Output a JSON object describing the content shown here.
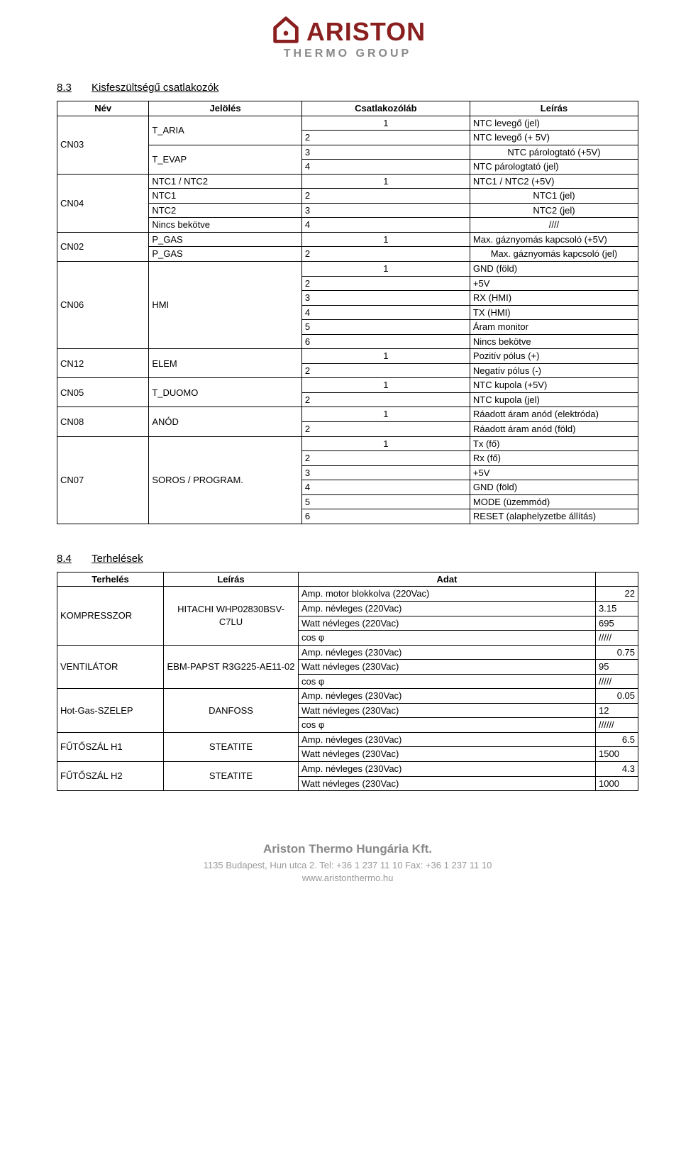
{
  "logo": {
    "brand": "ARISTON",
    "sub": "THERMO GROUP",
    "brand_color": "#8a1f1f",
    "sub_color": "#888888"
  },
  "section1": {
    "num": "8.3",
    "title": "Kisfeszültségű csatlakozók",
    "headers": [
      "Név",
      "Jelölés",
      "Csatlakozóláb",
      "Leírás"
    ],
    "rows": [
      {
        "nev": "CN03",
        "nev_span": 4,
        "jel": "T_ARIA",
        "jel_span": 2,
        "pin": "1",
        "leiras": "NTC levegő (jel)"
      },
      {
        "pin": "2",
        "leiras": "NTC levegő (+ 5V)"
      },
      {
        "jel": "T_EVAP",
        "jel_span": 2,
        "pin": "3",
        "leiras": "NTC párologtató (+5V)"
      },
      {
        "pin": "4",
        "leiras": "NTC párologtató (jel)"
      },
      {
        "nev": "CN04",
        "nev_span": 4,
        "jel": "NTC1 / NTC2",
        "pin": "1",
        "leiras": "NTC1 / NTC2 (+5V)"
      },
      {
        "jel": "NTC1",
        "pin": "2",
        "leiras": "NTC1 (jel)"
      },
      {
        "jel": "NTC2",
        "pin": "3",
        "leiras": "NTC2 (jel)"
      },
      {
        "jel": "Nincs bekötve",
        "pin": "4",
        "leiras": "////"
      },
      {
        "nev": "CN02",
        "nev_span": 2,
        "jel": "P_GAS",
        "pin": "1",
        "leiras": "Max. gáznyomás kapcsoló (+5V)"
      },
      {
        "jel": "P_GAS",
        "pin": "2",
        "leiras": "Max. gáznyomás kapcsoló (jel)"
      },
      {
        "nev": "CN06",
        "nev_span": 6,
        "jel": "HMI",
        "jel_span": 6,
        "pin": "1",
        "leiras": "GND (föld)"
      },
      {
        "pin": "2",
        "leiras": "+5V"
      },
      {
        "pin": "3",
        "leiras": "RX (HMI)"
      },
      {
        "pin": "4",
        "leiras": "TX (HMI)"
      },
      {
        "pin": "5",
        "leiras": "Áram monitor"
      },
      {
        "pin": "6",
        "leiras": "Nincs bekötve"
      },
      {
        "nev": "CN12",
        "nev_span": 2,
        "jel": "ELEM",
        "jel_span": 2,
        "pin": "1",
        "leiras": "Pozitív pólus (+)"
      },
      {
        "pin": "2",
        "leiras": "Negatív pólus (-)"
      },
      {
        "nev": "CN05",
        "nev_span": 2,
        "jel": "T_DUOMO",
        "jel_span": 2,
        "pin": "1",
        "leiras": "NTC kupola (+5V)"
      },
      {
        "pin": "2",
        "leiras": "NTC kupola (jel)"
      },
      {
        "nev": "CN08",
        "nev_span": 2,
        "jel": "ANÓD",
        "jel_span": 2,
        "pin": "1",
        "leiras": "Ráadott áram anód (elektróda)"
      },
      {
        "pin": "2",
        "leiras": "Ráadott áram anód (föld)"
      },
      {
        "nev": "CN07",
        "nev_span": 6,
        "jel": "SOROS / PROGRAM.",
        "jel_span": 6,
        "pin": "1",
        "leiras": "Tx (fő)"
      },
      {
        "pin": "2",
        "leiras": "Rx (fő)"
      },
      {
        "pin": "3",
        "leiras": "+5V"
      },
      {
        "pin": "4",
        "leiras": "GND (föld)"
      },
      {
        "pin": "5",
        "leiras": "MODE (üzemmód)"
      },
      {
        "pin": "6",
        "leiras": "RESET (alaphelyzetbe állítás)"
      }
    ]
  },
  "section2": {
    "num": "8.4",
    "title": "Terhelések",
    "headers": [
      "Terhelés",
      "Leírás",
      "Adat",
      ""
    ],
    "rows": [
      {
        "t": "KOMPRESSZOR",
        "t_span": 4,
        "l": "HITACHI WHP02830BSV-C7LU",
        "l_span": 4,
        "a": "Amp. motor blokkolva (220Vac)",
        "v": "22"
      },
      {
        "a": "Amp. névleges (220Vac)",
        "v": "3.15"
      },
      {
        "a": "Watt névleges (220Vac)",
        "v": "695"
      },
      {
        "a": "cos φ",
        "v": "/////"
      },
      {
        "t": "VENTILÁTOR",
        "t_span": 3,
        "l": "EBM-PAPST R3G225-AE11-02",
        "l_span": 3,
        "a": "Amp. névleges (230Vac)",
        "v": "0.75"
      },
      {
        "a": "Watt névleges (230Vac)",
        "v": "95"
      },
      {
        "a": "cos φ",
        "v": "/////"
      },
      {
        "t": "Hot-Gas-SZELEP",
        "t_span": 3,
        "l": "DANFOSS",
        "l_span": 3,
        "a": "Amp. névleges (230Vac)",
        "v": "0.05"
      },
      {
        "a": "Watt névleges (230Vac)",
        "v": "12"
      },
      {
        "a": "cos φ",
        "v": "//////"
      },
      {
        "t": "FŰTŐSZÁL   H1",
        "t_span": 2,
        "l": "STEATITE",
        "l_span": 2,
        "a": "Amp. névleges (230Vac)",
        "v": "6.5"
      },
      {
        "a": "Watt névleges (230Vac)",
        "v": "1500"
      },
      {
        "t": "FŰTŐSZÁL H2",
        "t_span": 2,
        "l": "STEATITE",
        "l_span": 2,
        "a": "Amp. névleges (230Vac)",
        "v": "4.3"
      },
      {
        "a": "Watt névleges (230Vac)",
        "v": "1000"
      }
    ]
  },
  "footer": {
    "company": "Ariston Thermo Hungária Kft.",
    "line1": "1135 Budapest, Hun utca 2.  Tel: +36 1 237 11 10  Fax: +36 1 237 11 10",
    "line2": "www.aristonthermo.hu"
  }
}
